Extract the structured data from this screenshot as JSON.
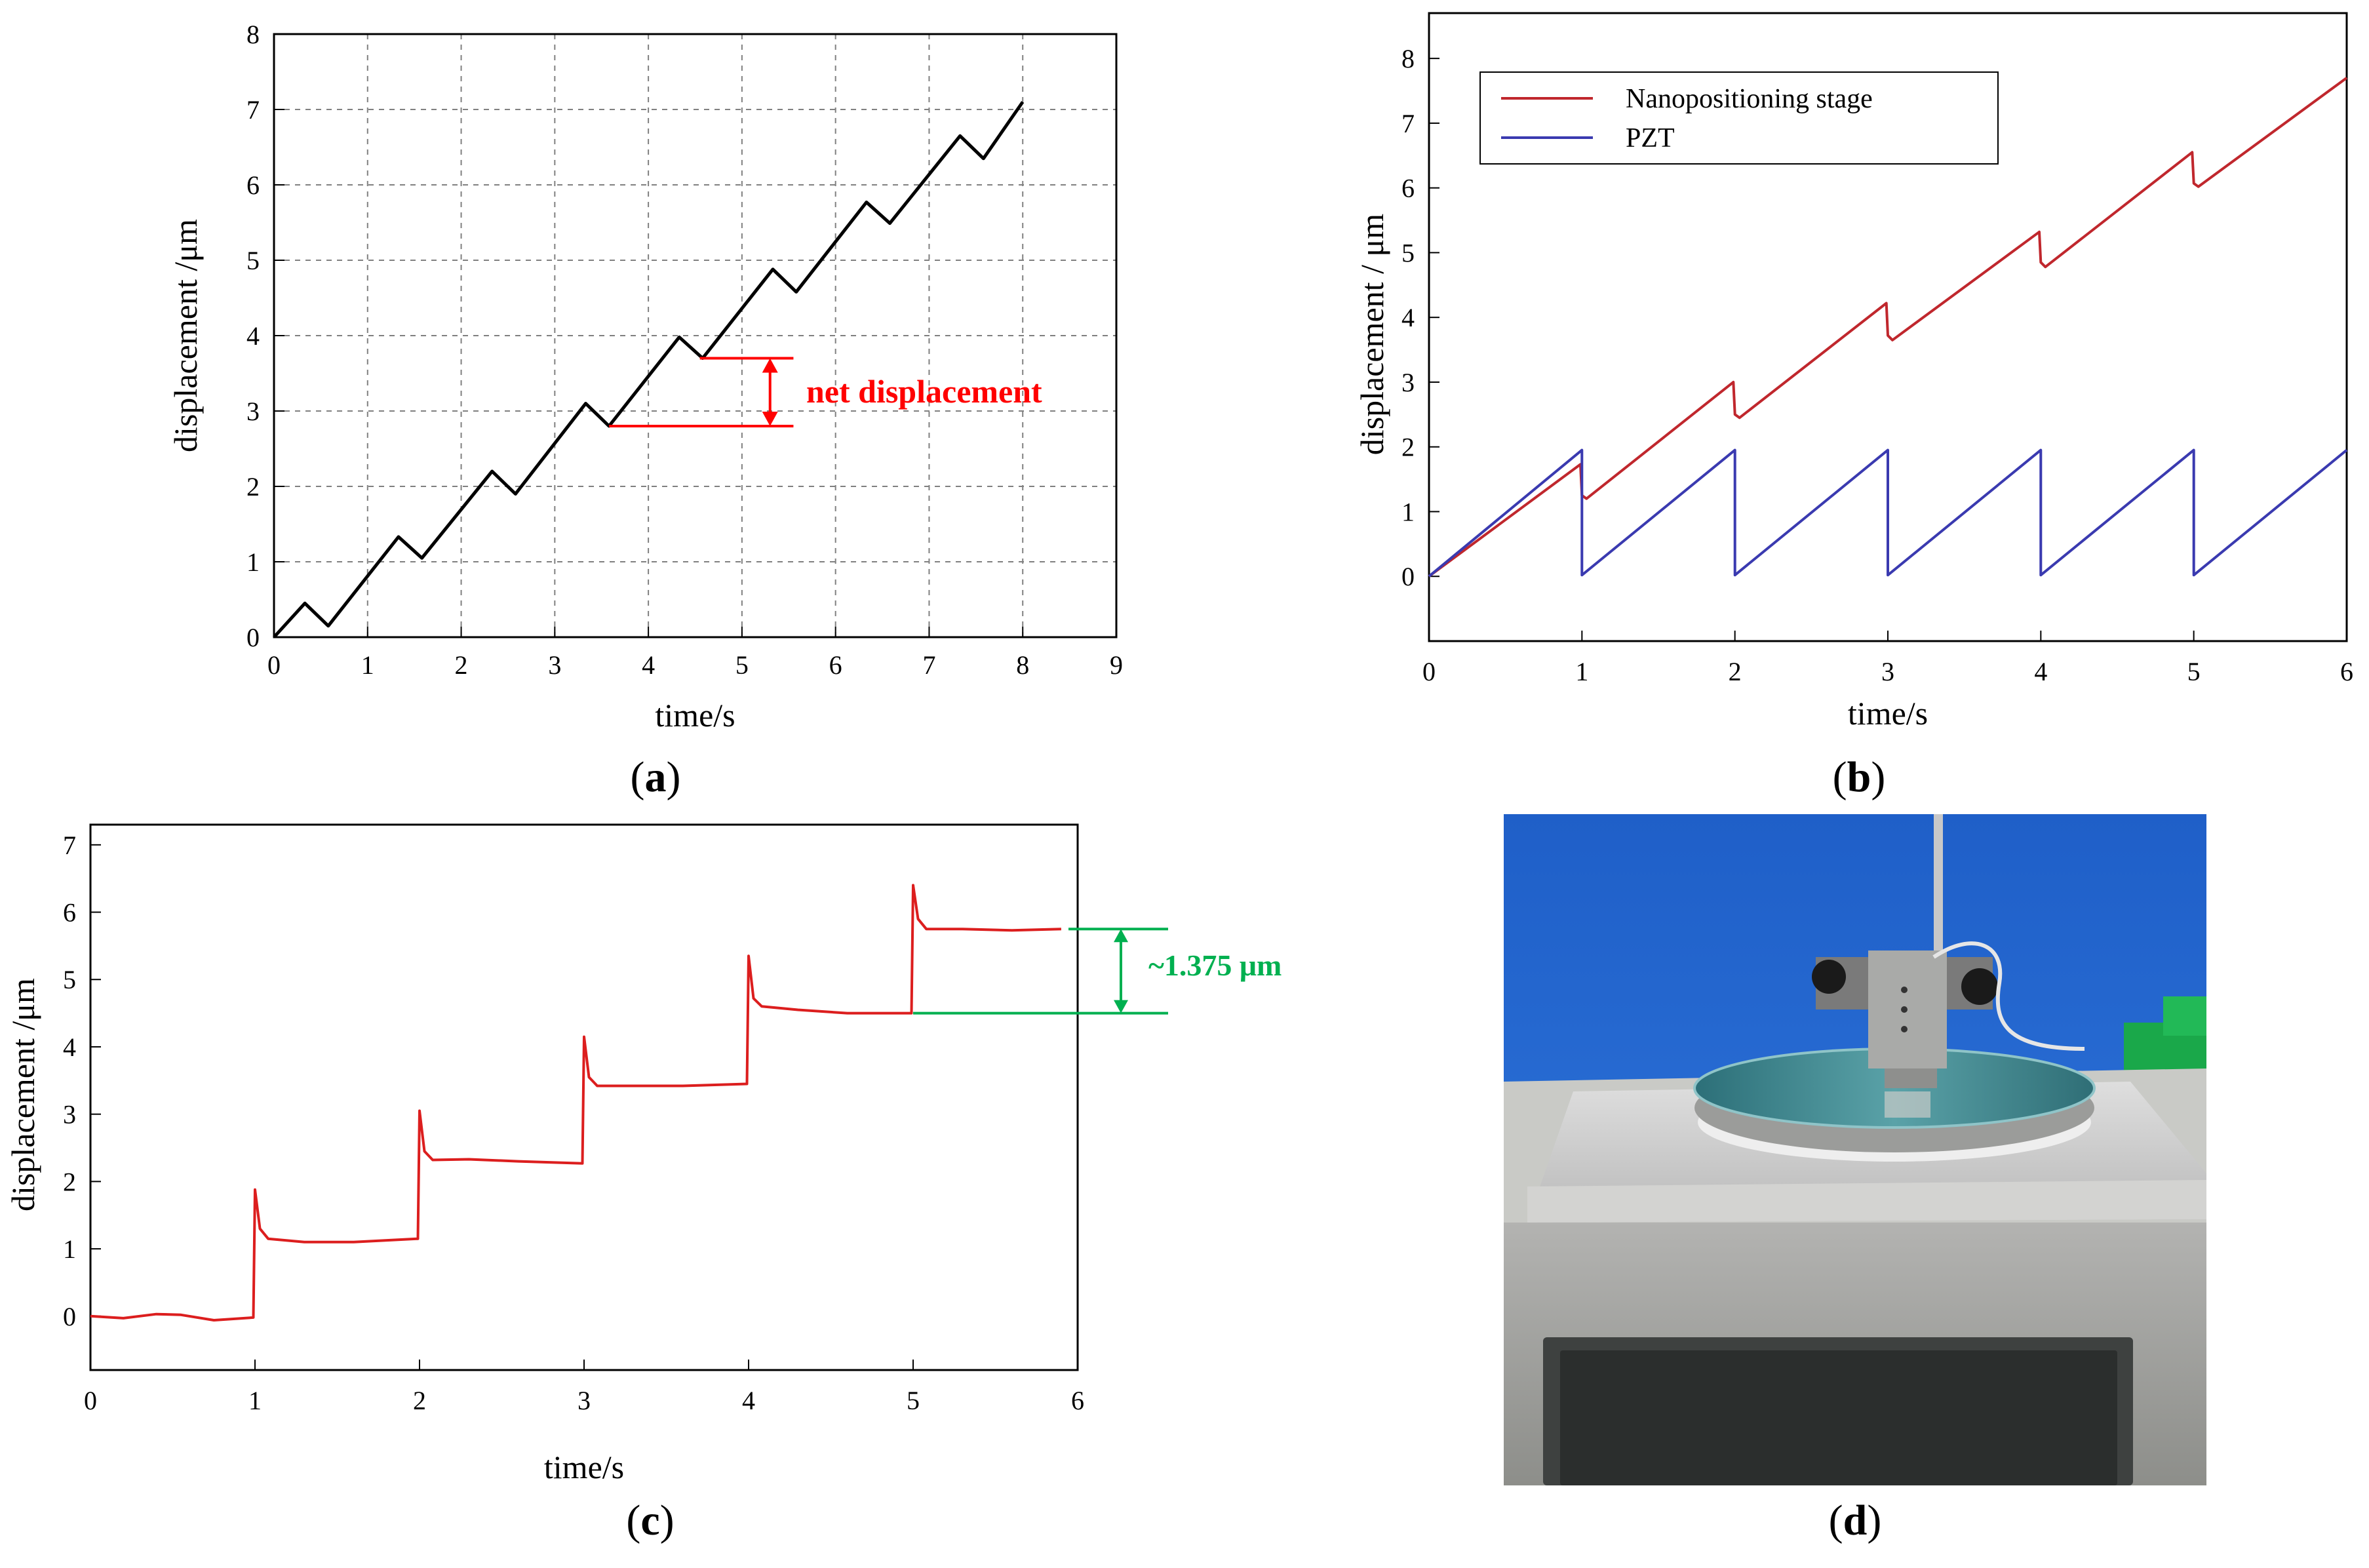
{
  "panels": {
    "a": {
      "caption_letter": "a"
    },
    "b": {
      "caption_letter": "b"
    },
    "c": {
      "caption_letter": "c"
    },
    "d": {
      "caption_letter": "d",
      "photo_description": "nanopositioning stage with PZT on glass-topped platform"
    }
  },
  "colors": {
    "black": "#000000",
    "red": "#ff0000",
    "stage_red": "#c0272d",
    "pzt_blue": "#3a3ab0",
    "green": "#00b050",
    "grid_gray": "#808080"
  },
  "chart_data": [
    {
      "id": "a",
      "type": "line",
      "title": "",
      "xlabel": "time/s",
      "ylabel": "displacement /μm",
      "xlim": [
        0,
        9
      ],
      "ylim": [
        0,
        8
      ],
      "xticks": [
        0,
        1,
        2,
        3,
        4,
        5,
        6,
        7,
        8,
        9
      ],
      "yticks": [
        0,
        1,
        2,
        3,
        4,
        5,
        6,
        7,
        8
      ],
      "grid": true,
      "series": [
        {
          "name": "displacement",
          "color": "#000000",
          "x": [
            0,
            0.33,
            0.58,
            1.33,
            1.58,
            2.33,
            2.58,
            3.33,
            3.58,
            4.33,
            4.58,
            5.33,
            5.58,
            6.33,
            6.58,
            7.33,
            7.58,
            8.0
          ],
          "y": [
            0,
            0.45,
            0.15,
            1.33,
            1.05,
            2.2,
            1.9,
            3.1,
            2.8,
            3.98,
            3.7,
            4.88,
            4.58,
            5.77,
            5.49,
            6.65,
            6.35,
            7.1
          ]
        }
      ],
      "annotation": {
        "text": "net displacement",
        "x_from": 3.58,
        "y_low": 2.8,
        "x_to": 5.55,
        "y_high": 3.7,
        "x_arrow": 5.3
      }
    },
    {
      "id": "b",
      "type": "line",
      "title": "",
      "xlabel": "time/s",
      "ylabel": "displacement / μm",
      "xlim": [
        0,
        6
      ],
      "ylim": [
        -1,
        8.7
      ],
      "xticks": [
        0,
        1,
        2,
        3,
        4,
        5,
        6
      ],
      "yticks": [
        0,
        1,
        2,
        3,
        4,
        5,
        6,
        7,
        8
      ],
      "grid": false,
      "legend": {
        "placement": "top-left",
        "entries": [
          "Nanopositioning stage",
          "PZT"
        ]
      },
      "series": [
        {
          "name": "Nanopositioning stage",
          "color": "#c0272d",
          "x": [
            0,
            0.99,
            1.0,
            1.03,
            1.99,
            2.0,
            2.03,
            2.99,
            3.0,
            3.03,
            3.99,
            4.0,
            4.03,
            4.99,
            5.0,
            5.03,
            6.0
          ],
          "y": [
            0,
            1.73,
            1.25,
            1.2,
            3.0,
            2.5,
            2.45,
            4.22,
            3.72,
            3.65,
            5.32,
            4.85,
            4.78,
            6.55,
            6.07,
            6.02,
            7.7
          ]
        },
        {
          "name": "PZT",
          "color": "#3a3ab0",
          "x": [
            0,
            1.0,
            1.0,
            2.0,
            2.0,
            3.0,
            3.0,
            4.0,
            4.0,
            5.0,
            5.0,
            6.0
          ],
          "y": [
            0,
            1.95,
            0.02,
            1.95,
            0.02,
            1.95,
            0.02,
            1.95,
            0.02,
            1.95,
            0.02,
            1.95
          ]
        }
      ]
    },
    {
      "id": "c",
      "type": "line",
      "title": "",
      "xlabel": "time/s",
      "ylabel": "displacement /μm",
      "xlim": [
        0,
        6
      ],
      "ylim": [
        -0.8,
        7.3
      ],
      "xticks": [
        0,
        1,
        2,
        3,
        4,
        5,
        6
      ],
      "yticks": [
        0,
        1,
        2,
        3,
        4,
        5,
        6,
        7
      ],
      "grid": false,
      "series": [
        {
          "name": "displacement",
          "color": "#dc1e1e",
          "x": [
            0,
            0.2,
            0.4,
            0.55,
            0.75,
            0.99,
            1.0,
            1.03,
            1.08,
            1.3,
            1.6,
            1.99,
            2.0,
            2.03,
            2.08,
            2.3,
            2.6,
            2.99,
            3.0,
            3.03,
            3.08,
            3.3,
            3.6,
            3.99,
            4.0,
            4.03,
            4.08,
            4.3,
            4.6,
            4.99,
            5.0,
            5.03,
            5.08,
            5.3,
            5.6,
            5.9
          ],
          "y": [
            0,
            -0.03,
            0.03,
            0.02,
            -0.06,
            -0.02,
            1.88,
            1.3,
            1.15,
            1.1,
            1.1,
            1.15,
            3.05,
            2.45,
            2.32,
            2.33,
            2.3,
            2.27,
            4.15,
            3.55,
            3.42,
            3.42,
            3.42,
            3.45,
            5.35,
            4.72,
            4.6,
            4.55,
            4.5,
            4.5,
            6.4,
            5.9,
            5.75,
            5.75,
            5.73,
            5.75
          ]
        }
      ],
      "annotation": {
        "text": "~1.375 μm",
        "y_low": 4.5,
        "y_high": 5.75,
        "x_from": 5.0,
        "x_to": 6.55,
        "x_arrow": 6.25
      }
    }
  ]
}
